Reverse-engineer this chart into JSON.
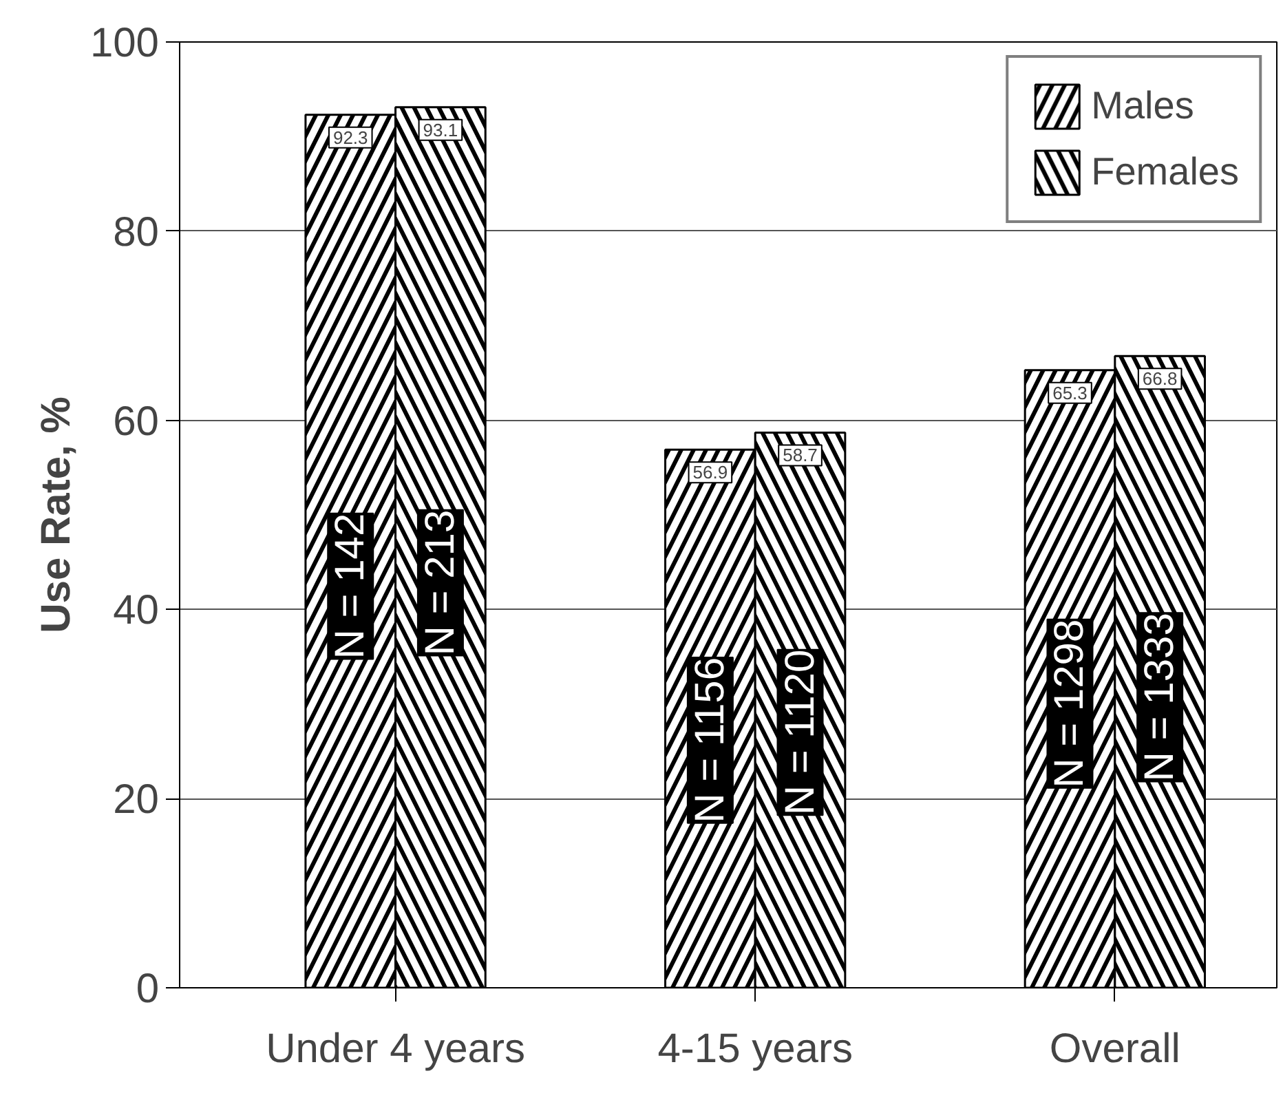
{
  "chart_data": {
    "type": "bar",
    "ylabel": "Use Rate, %",
    "categories": [
      "Under 4 years",
      "4-15 years",
      "Overall"
    ],
    "series": [
      {
        "name": "Males",
        "color": "#000000",
        "values": [
          92.3,
          56.9,
          65.3
        ]
      },
      {
        "name": "Females",
        "color": "#000000",
        "values": [
          93.1,
          58.7,
          66.8
        ]
      }
    ],
    "ylim": [
      0,
      100
    ],
    "yticks": [
      0,
      20,
      40,
      60,
      80,
      100
    ],
    "grid": "y",
    "legend": "top right",
    "data_labels": true,
    "annotations": [
      "N = 142",
      "N = 213",
      "N = 1156",
      "N = 1120",
      "N = 1298",
      "N = 1333"
    ]
  }
}
